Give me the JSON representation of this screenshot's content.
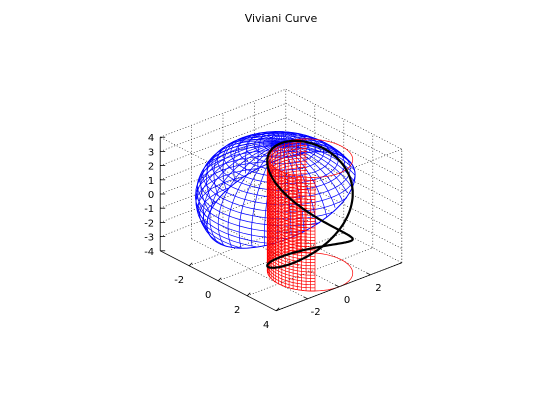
{
  "chart_data": {
    "type": "3d-line-surface",
    "title": "Viviani Curve",
    "xlabel": "",
    "ylabel": "",
    "zlabel": "",
    "xlim": [
      -4,
      4
    ],
    "ylim": [
      -4,
      4
    ],
    "zlim": [
      -4,
      4
    ],
    "x_ticks": [
      "-2",
      "0",
      "2",
      "4"
    ],
    "y_ticks": [
      "-2",
      "0",
      "2"
    ],
    "z_ticks": [
      "4",
      "3",
      "2",
      "1",
      "0",
      "-1",
      "-2",
      "-3",
      "-4"
    ],
    "grid": true,
    "box": true,
    "surfaces": [
      {
        "kind": "sphere",
        "radius": 4,
        "center": [
          0,
          0,
          0
        ],
        "color": "#0000ff",
        "style": "wireframe"
      },
      {
        "kind": "cylinder",
        "radius": 2,
        "axis_center": [
          2,
          0
        ],
        "z_range": [
          -4,
          4
        ],
        "color": "#ff0000",
        "style": "wireframe"
      }
    ],
    "curve": {
      "equation": "x = 2 + 2cos(t), y = 2sin(t), z = 4sin(t/2)",
      "t_range": [
        0,
        12.566
      ],
      "color": "#000000"
    }
  }
}
